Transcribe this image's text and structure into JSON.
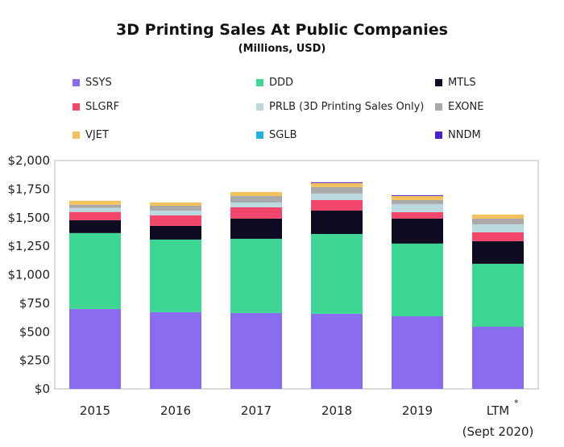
{
  "chart_data": {
    "type": "bar",
    "stacked": true,
    "title": "3D Printing Sales At Public Companies",
    "subtitle": "(Millions, USD)",
    "xlabel": "",
    "ylabel": "",
    "ylim": [
      0,
      2000
    ],
    "yticks": [
      "$0",
      "$250",
      "$500",
      "$750",
      "$1,000",
      "$1,250",
      "$1,500",
      "$1,750",
      "$2,000"
    ],
    "ytick_values": [
      0,
      250,
      500,
      750,
      1000,
      1250,
      1500,
      1750,
      2000
    ],
    "grid": false,
    "legend_position": "top",
    "categories": [
      "2015",
      "2016",
      "2017",
      "2018",
      "2019",
      "LTM"
    ],
    "category_note": {
      "marker": "*",
      "sublabel": "(Sept 2020)"
    },
    "series": [
      {
        "name": "SSYS",
        "color": "#8a6cf0",
        "values": [
          700,
          672,
          665,
          658,
          636,
          544
        ]
      },
      {
        "name": "DDD",
        "color": "#3dd693",
        "values": [
          665,
          636,
          650,
          699,
          637,
          552
        ]
      },
      {
        "name": "MTLS",
        "color": "#0d0c22",
        "values": [
          113,
          120,
          177,
          205,
          219,
          198
        ]
      },
      {
        "name": "SLGRF",
        "color": "#f2476a",
        "values": [
          72,
          92,
          99,
          92,
          56,
          78
        ]
      },
      {
        "name": "PRLB (3D Printing Sales Only)",
        "color": "#b9d8e0",
        "values": [
          35,
          42,
          42,
          57,
          71,
          70
        ]
      },
      {
        "name": "EXONE",
        "color": "#a9a9a9",
        "values": [
          28,
          43,
          57,
          57,
          35,
          50
        ]
      },
      {
        "name": "VJET",
        "color": "#f2c25c",
        "values": [
          35,
          28,
          35,
          35,
          36,
          35
        ]
      },
      {
        "name": "SGLB",
        "color": "#1fb4df",
        "values": [
          0,
          0,
          0,
          0,
          0,
          0
        ]
      },
      {
        "name": "NNDM",
        "color": "#4a20d0",
        "values": [
          0,
          0,
          0,
          7,
          7,
          0
        ]
      }
    ]
  }
}
